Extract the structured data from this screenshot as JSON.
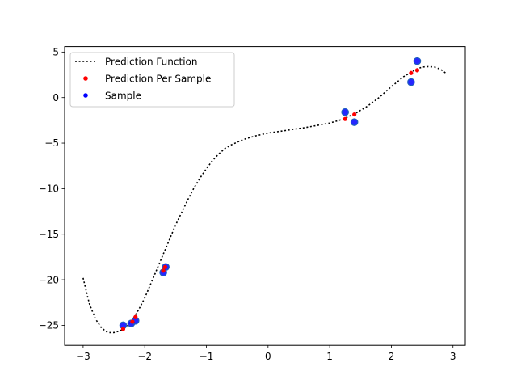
{
  "chart_data": {
    "type": "scatter",
    "title": "",
    "xlabel": "",
    "ylabel": "",
    "xlim": [
      -3.3,
      3.2
    ],
    "ylim": [
      -27.2,
      5.6
    ],
    "x_ticks": [
      -3,
      -2,
      -1,
      0,
      1,
      2,
      3
    ],
    "x_tick_labels": [
      "−3",
      "−2",
      "−1",
      "0",
      "1",
      "2",
      "3"
    ],
    "y_ticks": [
      5,
      0,
      -5,
      -10,
      -15,
      -20,
      -25
    ],
    "y_tick_labels": [
      "5",
      "0",
      "−5",
      "−10",
      "−15",
      "−20",
      "−25"
    ],
    "grid": false,
    "legend_position": "upper-left",
    "series": [
      {
        "name": "Prediction Function",
        "kind": "line",
        "style": "dotted",
        "color": "#000000",
        "x": [
          -3.0,
          -2.9,
          -2.8,
          -2.7,
          -2.6,
          -2.5,
          -2.45,
          -2.4,
          -2.35,
          -2.3,
          -2.2,
          -2.1,
          -2.0,
          -1.9,
          -1.8,
          -1.7,
          -1.6,
          -1.5,
          -1.4,
          -1.3,
          -1.2,
          -1.1,
          -1.0,
          -0.9,
          -0.8,
          -0.7,
          -0.6,
          -0.5,
          -0.4,
          -0.3,
          -0.2,
          -0.1,
          0.0,
          0.2,
          0.4,
          0.6,
          0.8,
          1.0,
          1.2,
          1.4,
          1.6,
          1.8,
          2.0,
          2.2,
          2.4,
          2.5,
          2.6,
          2.7,
          2.8,
          2.9
        ],
        "y": [
          -19.8,
          -22.6,
          -24.3,
          -25.3,
          -25.8,
          -25.8,
          -25.7,
          -25.6,
          -25.4,
          -25.1,
          -24.4,
          -23.3,
          -22.0,
          -20.4,
          -18.8,
          -17.2,
          -15.6,
          -14.0,
          -12.6,
          -11.2,
          -9.9,
          -8.8,
          -7.8,
          -6.9,
          -6.2,
          -5.6,
          -5.2,
          -4.9,
          -4.6,
          -4.4,
          -4.2,
          -4.05,
          -3.9,
          -3.7,
          -3.5,
          -3.3,
          -3.05,
          -2.8,
          -2.4,
          -1.8,
          -1.0,
          0.0,
          1.2,
          2.3,
          3.1,
          3.35,
          3.4,
          3.35,
          3.1,
          2.6
        ]
      },
      {
        "name": "Prediction Per Sample",
        "kind": "scatter",
        "color": "#ff0000",
        "points": [
          [
            -2.35,
            -25.4
          ],
          [
            -2.2,
            -24.6
          ],
          [
            -2.15,
            -24.1
          ],
          [
            -1.7,
            -19.0
          ],
          [
            -1.67,
            -18.6
          ],
          [
            1.25,
            -2.35
          ],
          [
            1.4,
            -1.85
          ],
          [
            2.32,
            2.7
          ],
          [
            2.42,
            3.0
          ]
        ]
      },
      {
        "name": "Sample",
        "kind": "scatter",
        "color": "#0000ff",
        "points": [
          [
            -2.35,
            -25.0
          ],
          [
            -2.22,
            -24.8
          ],
          [
            -2.15,
            -24.5
          ],
          [
            -1.7,
            -19.2
          ],
          [
            -1.66,
            -18.6
          ],
          [
            1.25,
            -1.6
          ],
          [
            1.4,
            -2.7
          ],
          [
            2.32,
            1.7
          ],
          [
            2.42,
            4.0
          ]
        ]
      }
    ]
  }
}
